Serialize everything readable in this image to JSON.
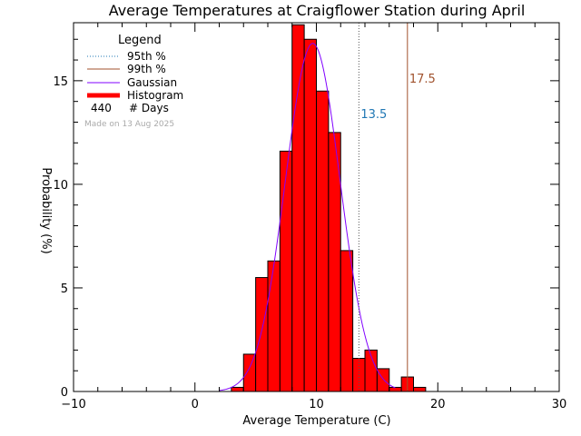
{
  "chart_data": {
    "type": "bar",
    "title": "Average Temperatures at Craigflower Station during April",
    "xlabel": "Average Temperature (C)",
    "ylabel": "Probability (%)",
    "xlim": [
      -10,
      30
    ],
    "ylim": [
      0,
      17.8
    ],
    "x_ticks": [
      -10,
      0,
      10,
      20,
      30
    ],
    "y_ticks": [
      0,
      5,
      10,
      15
    ],
    "bin_width": 1,
    "bins": [
      {
        "x": 3,
        "value": 0.2
      },
      {
        "x": 4,
        "value": 1.8
      },
      {
        "x": 5,
        "value": 5.5
      },
      {
        "x": 6,
        "value": 6.3
      },
      {
        "x": 7,
        "value": 11.6
      },
      {
        "x": 8,
        "value": 17.7
      },
      {
        "x": 9,
        "value": 17.0
      },
      {
        "x": 10,
        "value": 14.5
      },
      {
        "x": 11,
        "value": 12.5
      },
      {
        "x": 12,
        "value": 6.8
      },
      {
        "x": 13,
        "value": 1.6
      },
      {
        "x": 14,
        "value": 2.0
      },
      {
        "x": 15,
        "value": 1.1
      },
      {
        "x": 16,
        "value": 0.2
      },
      {
        "x": 17,
        "value": 0.7
      },
      {
        "x": 18,
        "value": 0.2
      }
    ],
    "gaussian": {
      "mean": 9.7,
      "sigma": 2.25,
      "peak": 16.8,
      "x_range": [
        2,
        16.5
      ]
    },
    "percentile_95": {
      "value": 13.5,
      "label": "13.5"
    },
    "percentile_99": {
      "value": 17.5,
      "label": "17.5"
    },
    "days": 440,
    "legend": {
      "title": "Legend",
      "items": [
        {
          "label": "95th %",
          "style": "dotted",
          "color": "#1f77b4"
        },
        {
          "label": "99th %",
          "style": "solid",
          "color": "#a0522d"
        },
        {
          "label": "Gaussian",
          "style": "solid",
          "color": "#8000ff"
        },
        {
          "label": "Histogram",
          "style": "thick",
          "color": "#ff0000"
        }
      ],
      "days_value": "440",
      "days_label": "# Days",
      "made_on": "Made on 13 Aug 2025",
      "placement": "top-left"
    },
    "colors": {
      "histogram_fill": "#ff0000",
      "gaussian": "#8000ff",
      "p95": "#1f77b4",
      "p99": "#a0522d",
      "axis": "#000000"
    }
  }
}
